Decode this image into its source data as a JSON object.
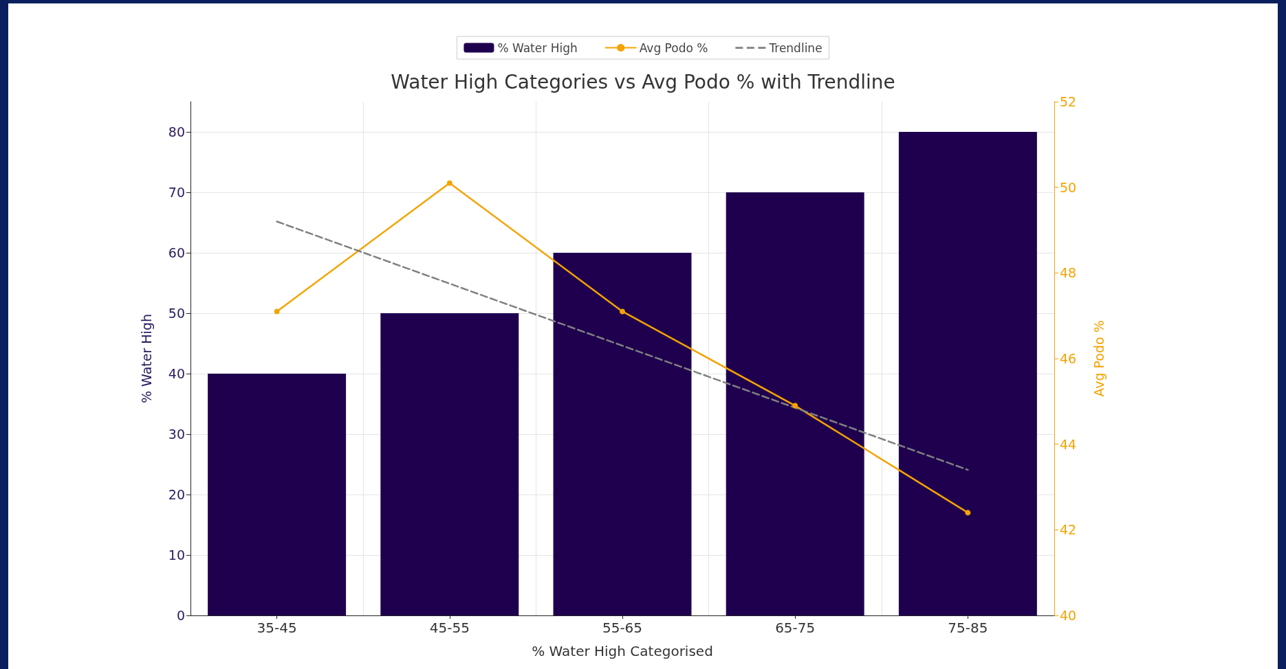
{
  "chart_data": {
    "type": "bar",
    "title": "Water High Categories vs Avg Podo % with Trendline",
    "xlabel": "% Water High Categorised",
    "ylabel": "% Water High",
    "y2label": "Avg Podo %",
    "categories": [
      "35-45",
      "45-55",
      "55-65",
      "65-75",
      "75-85"
    ],
    "series": [
      {
        "name": "% Water High",
        "color": "#1f004f",
        "values": [
          40,
          50,
          60,
          70,
          80
        ]
      },
      {
        "name": "Avg Podo %",
        "type": "line",
        "axis": "y2",
        "color": "#f5a300",
        "values": [
          47.1,
          50.1,
          47.1,
          44.9,
          42.4
        ]
      },
      {
        "name": "Trendline",
        "type": "line",
        "axis": "y2",
        "color": "#808080",
        "line_style": "dashed",
        "marker": "none",
        "x": [
          "35-45",
          "75-85"
        ],
        "values": [
          49.2,
          43.4
        ]
      }
    ],
    "ylim": [
      0,
      85
    ],
    "yticks": [
      0,
      10,
      20,
      30,
      40,
      50,
      60,
      70,
      80
    ],
    "y2lim": [
      40,
      52
    ],
    "y2ticks": [
      40,
      42,
      44,
      46,
      48,
      50,
      52
    ],
    "grid": true,
    "legend": "top",
    "marker": "circle"
  }
}
